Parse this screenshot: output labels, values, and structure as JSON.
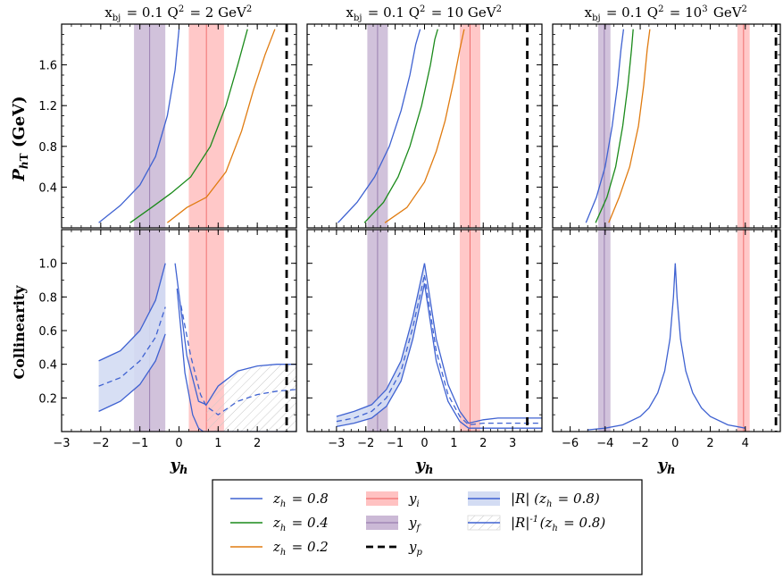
{
  "colors": {
    "z08": "#3f62d1",
    "z04": "#1a8a1a",
    "z02": "#e07b10",
    "yi": "#ff9a9a",
    "yf": "#b9a2c8",
    "band": "#d3dcf3",
    "hatch": "#c9c9c9"
  },
  "axis_labels": {
    "ylabel_top": "P_{hT} (GeV)",
    "ylabel_bottom": "Collinearity",
    "xlabel": "y_h"
  },
  "legend": {
    "entries": [
      {
        "key": "z08",
        "label": "z_h = 0.8"
      },
      {
        "key": "z04",
        "label": "z_h = 0.4"
      },
      {
        "key": "z02",
        "label": "z_h = 0.2"
      },
      {
        "key": "yi",
        "label": "y_i"
      },
      {
        "key": "yf",
        "label": "y_f"
      },
      {
        "key": "yp",
        "label": "y_p"
      },
      {
        "key": "R",
        "label": "|R|   (z_h = 0.8)"
      },
      {
        "key": "Rinv",
        "label": "|R|^{-1}(z_h = 0.8)"
      }
    ]
  },
  "chart_data": [
    {
      "type": "line",
      "panel": "top-left",
      "title": "x_bj = 0.1  Q^2 = 2 GeV^2",
      "xlim": [
        -3,
        3
      ],
      "ylim": [
        0,
        2.0
      ],
      "xticks": [
        -3,
        -2,
        -1,
        0,
        1,
        2
      ],
      "yticks": [
        0.4,
        0.8,
        1.2,
        1.6
      ],
      "y_f": {
        "center": -0.75,
        "halfwidth": 0.4
      },
      "y_i": {
        "center": 0.7,
        "halfwidth": 0.45
      },
      "y_p": 2.75,
      "series": [
        {
          "name": "z_h = 0.8",
          "color": "z08",
          "x": [
            -2.05,
            -1.5,
            -1.0,
            -0.6,
            -0.3,
            -0.1,
            0.0
          ],
          "y": [
            0.05,
            0.22,
            0.42,
            0.7,
            1.1,
            1.55,
            1.95
          ]
        },
        {
          "name": "z_h = 0.4",
          "color": "z04",
          "x": [
            -1.25,
            -0.7,
            -0.2,
            0.3,
            0.8,
            1.2,
            1.5,
            1.75
          ],
          "y": [
            0.05,
            0.2,
            0.34,
            0.5,
            0.8,
            1.2,
            1.6,
            1.95
          ]
        },
        {
          "name": "z_h = 0.2",
          "color": "z02",
          "x": [
            -0.3,
            0.2,
            0.7,
            1.2,
            1.6,
            1.9,
            2.2,
            2.45
          ],
          "y": [
            0.05,
            0.2,
            0.3,
            0.55,
            0.95,
            1.35,
            1.7,
            1.95
          ]
        }
      ]
    },
    {
      "type": "line",
      "panel": "top-middle",
      "title": "x_bj = 0.1  Q^2 = 10 GeV^2",
      "xlim": [
        -4.0,
        4.0
      ],
      "ylim": [
        0,
        2.0
      ],
      "xticks": [
        -3,
        -2,
        -1,
        0,
        1,
        2,
        3
      ],
      "yticks": [
        0.4,
        0.8,
        1.2,
        1.6
      ],
      "y_f": {
        "center": -1.6,
        "halfwidth": 0.35
      },
      "y_i": {
        "center": 1.55,
        "halfwidth": 0.35
      },
      "y_p": 3.5,
      "series": [
        {
          "name": "z_h = 0.8",
          "color": "z08",
          "x": [
            -2.95,
            -2.3,
            -1.7,
            -1.2,
            -0.8,
            -0.5,
            -0.3,
            -0.15
          ],
          "y": [
            0.05,
            0.25,
            0.5,
            0.8,
            1.15,
            1.5,
            1.8,
            1.95
          ]
        },
        {
          "name": "z_h = 0.4",
          "color": "z04",
          "x": [
            -2.05,
            -1.4,
            -0.9,
            -0.5,
            -0.1,
            0.2,
            0.35,
            0.45
          ],
          "y": [
            0.05,
            0.25,
            0.5,
            0.8,
            1.2,
            1.6,
            1.85,
            1.95
          ]
        },
        {
          "name": "z_h = 0.2",
          "color": "z02",
          "x": [
            -1.35,
            -0.6,
            0.0,
            0.4,
            0.7,
            1.0,
            1.2,
            1.35
          ],
          "y": [
            0.05,
            0.2,
            0.45,
            0.75,
            1.05,
            1.45,
            1.75,
            1.95
          ]
        }
      ]
    },
    {
      "type": "line",
      "panel": "top-right",
      "title": "x_bj = 0.1  Q^2 = 10^3 GeV^2",
      "xlim": [
        -7.0,
        6.0
      ],
      "ylim": [
        0,
        2.0
      ],
      "xticks": [
        -6,
        -4,
        -2,
        0,
        2,
        4
      ],
      "yticks": [
        0.4,
        0.8,
        1.2,
        1.6
      ],
      "y_f": {
        "center": -4.05,
        "halfwidth": 0.35
      },
      "y_i": {
        "center": 3.9,
        "halfwidth": 0.35
      },
      "y_p": 5.75,
      "series": [
        {
          "name": "z_h = 0.8",
          "color": "z08",
          "x": [
            -5.1,
            -4.5,
            -4.0,
            -3.6,
            -3.3,
            -3.1,
            -2.95
          ],
          "y": [
            0.05,
            0.3,
            0.6,
            1.0,
            1.4,
            1.75,
            1.95
          ]
        },
        {
          "name": "z_h = 0.4",
          "color": "z04",
          "x": [
            -4.55,
            -3.9,
            -3.4,
            -3.0,
            -2.7,
            -2.5,
            -2.4
          ],
          "y": [
            0.05,
            0.3,
            0.6,
            1.0,
            1.4,
            1.75,
            1.95
          ]
        },
        {
          "name": "z_h = 0.2",
          "color": "z02",
          "x": [
            -3.8,
            -3.2,
            -2.6,
            -2.1,
            -1.8,
            -1.6,
            -1.45
          ],
          "y": [
            0.05,
            0.3,
            0.6,
            1.0,
            1.4,
            1.75,
            1.95
          ]
        }
      ]
    },
    {
      "type": "line",
      "panel": "bottom-left",
      "xlabel": "y_h",
      "xlim": [
        -3,
        3
      ],
      "ylim": [
        0,
        1.2
      ],
      "xticks": [
        -3,
        -2,
        -1,
        0,
        1,
        2
      ],
      "yticks": [
        0.2,
        0.4,
        0.6,
        0.8,
        1.0
      ],
      "y_f": {
        "center": -0.75,
        "halfwidth": 0.4
      },
      "y_i": {
        "center": 0.7,
        "halfwidth": 0.45
      },
      "y_p": 2.75,
      "band_left": {
        "x": [
          -2.05,
          -1.5,
          -1.0,
          -0.6,
          -0.35
        ],
        "upper": [
          0.42,
          0.48,
          0.6,
          0.78,
          1.0
        ],
        "lower": [
          0.12,
          0.18,
          0.28,
          0.42,
          0.58
        ]
      },
      "dashed_left": {
        "x": [
          -2.05,
          -1.5,
          -1.0,
          -0.6,
          -0.35
        ],
        "y": [
          0.27,
          0.32,
          0.42,
          0.56,
          0.74
        ]
      },
      "upper_right": {
        "x": [
          -0.1,
          0.2,
          0.5,
          0.7,
          1.0,
          1.5,
          2.0,
          2.5,
          3.0
        ],
        "y": [
          1.0,
          0.45,
          0.18,
          0.16,
          0.27,
          0.36,
          0.39,
          0.4,
          0.4
        ]
      },
      "lower_right": {
        "x": [
          -0.05,
          0.15,
          0.35,
          0.5,
          0.62,
          0.7,
          1.0,
          1.5,
          2.0,
          2.5,
          3.0
        ],
        "y": [
          0.85,
          0.35,
          0.1,
          0.02,
          0.0,
          0.0,
          0.0,
          0.0,
          0.0,
          0.0,
          0.0
        ]
      },
      "dashed_right": {
        "x": [
          0.05,
          0.3,
          0.55,
          0.7,
          1.0,
          1.5,
          2.0,
          2.5,
          3.0
        ],
        "y": [
          0.75,
          0.45,
          0.22,
          0.15,
          0.1,
          0.18,
          0.22,
          0.24,
          0.25
        ]
      }
    },
    {
      "type": "line",
      "panel": "bottom-middle",
      "xlabel": "y_h",
      "xlim": [
        -4.0,
        4.0
      ],
      "ylim": [
        0,
        1.2
      ],
      "xticks": [
        -3,
        -2,
        -1,
        0,
        1,
        2,
        3
      ],
      "yticks": [
        0.2,
        0.4,
        0.6,
        0.8,
        1.0
      ],
      "y_f": {
        "center": -1.6,
        "halfwidth": 0.35
      },
      "y_i": {
        "center": 1.55,
        "halfwidth": 0.35
      },
      "y_p": 3.5,
      "band": {
        "x": [
          -3.0,
          -2.4,
          -1.8,
          -1.3,
          -0.8,
          -0.4,
          0.0
        ],
        "upper": [
          0.09,
          0.12,
          0.16,
          0.25,
          0.42,
          0.68,
          1.0
        ],
        "lower": [
          0.03,
          0.05,
          0.08,
          0.15,
          0.3,
          0.55,
          0.88
        ]
      },
      "dashed": {
        "x": [
          -3.0,
          -2.4,
          -1.8,
          -1.3,
          -0.8,
          -0.4,
          0.0
        ],
        "y": [
          0.06,
          0.08,
          0.12,
          0.2,
          0.36,
          0.62,
          0.93
        ]
      },
      "right_upper": {
        "x": [
          0.0,
          0.4,
          0.8,
          1.2,
          1.5,
          2.0,
          2.5,
          3.0,
          4.0
        ],
        "y": [
          1.0,
          0.55,
          0.28,
          0.12,
          0.05,
          0.07,
          0.08,
          0.08,
          0.08
        ]
      },
      "right_lower": {
        "x": [
          0.0,
          0.4,
          0.8,
          1.2,
          1.5,
          2.0,
          2.5,
          3.0,
          4.0
        ],
        "y": [
          0.88,
          0.42,
          0.18,
          0.06,
          0.02,
          0.02,
          0.02,
          0.02,
          0.02
        ]
      },
      "right_dashed": {
        "x": [
          0.0,
          0.4,
          0.8,
          1.2,
          1.5,
          2.0,
          2.5,
          3.0,
          4.0
        ],
        "y": [
          0.93,
          0.48,
          0.22,
          0.09,
          0.04,
          0.05,
          0.05,
          0.05,
          0.05
        ]
      }
    },
    {
      "type": "line",
      "panel": "bottom-right",
      "xlabel": "y_h",
      "xlim": [
        -7.0,
        6.0
      ],
      "ylim": [
        0,
        1.2
      ],
      "xticks": [
        -6,
        -4,
        -2,
        0,
        2,
        4
      ],
      "yticks": [
        0.2,
        0.4,
        0.6,
        0.8,
        1.0
      ],
      "y_f": {
        "center": -4.05,
        "halfwidth": 0.35
      },
      "y_i": {
        "center": 3.9,
        "halfwidth": 0.35
      },
      "y_p": 5.75,
      "series": [
        {
          "name": "z_h = 0.8",
          "color": "z08",
          "x": [
            -5.0,
            -4.0,
            -3.0,
            -2.0,
            -1.5,
            -1.0,
            -0.6,
            -0.3,
            -0.1,
            0.0,
            0.1,
            0.3,
            0.6,
            1.0,
            1.5,
            2.0,
            3.0,
            4.0
          ],
          "y": [
            0.01,
            0.02,
            0.04,
            0.09,
            0.14,
            0.23,
            0.36,
            0.55,
            0.8,
            1.0,
            0.8,
            0.55,
            0.36,
            0.23,
            0.14,
            0.09,
            0.04,
            0.02
          ]
        }
      ]
    }
  ]
}
